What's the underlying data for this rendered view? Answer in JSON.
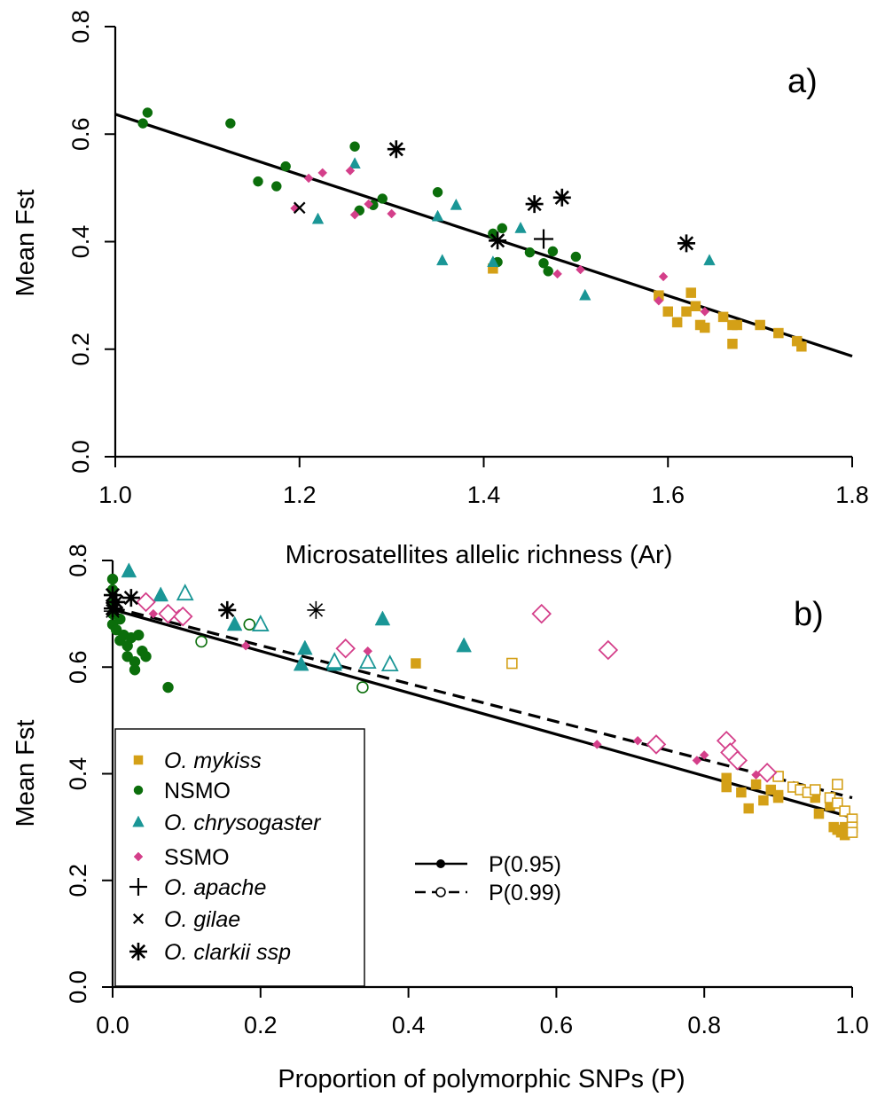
{
  "colors": {
    "mykiss": "#d4a017",
    "nsmo": "#0b6e0b",
    "chrysogaster": "#1a9696",
    "ssmo": "#d43f8a",
    "black": "#000000"
  },
  "chart_data": [
    {
      "type": "scatter",
      "panel_label": "a)",
      "xlabel": "Microsatellites allelic richness (Ar)",
      "ylabel": "Mean Fst",
      "xlim": [
        1.0,
        1.8
      ],
      "ylim": [
        0.0,
        0.8
      ],
      "xticks": [
        "1.0",
        "1.2",
        "1.4",
        "1.6",
        "1.8"
      ],
      "yticks": [
        "0.0",
        "0.2",
        "0.4",
        "0.6",
        "0.8"
      ],
      "grid": false,
      "regression_lines": [
        {
          "style": "solid",
          "x": [
            1.0,
            1.8
          ],
          "y": [
            0.637,
            0.187
          ]
        }
      ],
      "series": [
        {
          "group": "mykiss",
          "marker": "square",
          "points": [
            [
              1.41,
              0.35
            ],
            [
              1.59,
              0.3
            ],
            [
              1.6,
              0.27
            ],
            [
              1.61,
              0.25
            ],
            [
              1.62,
              0.27
            ],
            [
              1.63,
              0.28
            ],
            [
              1.625,
              0.305
            ],
            [
              1.635,
              0.245
            ],
            [
              1.64,
              0.24
            ],
            [
              1.66,
              0.26
            ],
            [
              1.67,
              0.245
            ],
            [
              1.675,
              0.245
            ],
            [
              1.67,
              0.21
            ],
            [
              1.7,
              0.245
            ],
            [
              1.72,
              0.23
            ],
            [
              1.74,
              0.215
            ],
            [
              1.745,
              0.205
            ]
          ]
        },
        {
          "group": "nsmo",
          "marker": "circle",
          "points": [
            [
              1.03,
              0.62
            ],
            [
              1.035,
              0.64
            ],
            [
              1.125,
              0.62
            ],
            [
              1.155,
              0.512
            ],
            [
              1.175,
              0.503
            ],
            [
              1.185,
              0.54
            ],
            [
              1.26,
              0.577
            ],
            [
              1.265,
              0.458
            ],
            [
              1.28,
              0.468
            ],
            [
              1.29,
              0.48
            ],
            [
              1.35,
              0.492
            ],
            [
              1.41,
              0.415
            ],
            [
              1.415,
              0.362
            ],
            [
              1.42,
              0.425
            ],
            [
              1.45,
              0.38
            ],
            [
              1.465,
              0.36
            ],
            [
              1.47,
              0.345
            ],
            [
              1.475,
              0.382
            ],
            [
              1.5,
              0.372
            ]
          ]
        },
        {
          "group": "chrysogaster",
          "marker": "triangle",
          "points": [
            [
              1.22,
              0.442
            ],
            [
              1.26,
              0.545
            ],
            [
              1.35,
              0.447
            ],
            [
              1.355,
              0.365
            ],
            [
              1.37,
              0.468
            ],
            [
              1.41,
              0.362
            ],
            [
              1.44,
              0.425
            ],
            [
              1.51,
              0.3
            ],
            [
              1.645,
              0.365
            ]
          ]
        },
        {
          "group": "ssmo",
          "marker": "diamond",
          "points": [
            [
              1.195,
              0.462
            ],
            [
              1.21,
              0.518
            ],
            [
              1.225,
              0.528
            ],
            [
              1.255,
              0.532
            ],
            [
              1.26,
              0.45
            ],
            [
              1.275,
              0.47
            ],
            [
              1.3,
              0.452
            ],
            [
              1.48,
              0.34
            ],
            [
              1.505,
              0.348
            ],
            [
              1.59,
              0.29
            ],
            [
              1.595,
              0.335
            ],
            [
              1.64,
              0.27
            ]
          ]
        },
        {
          "group": "apache",
          "marker": "plus",
          "points": [
            [
              1.465,
              0.405
            ]
          ]
        },
        {
          "group": "gilae",
          "marker": "cross",
          "points": [
            [
              1.2,
              0.463
            ]
          ]
        },
        {
          "group": "clarkii",
          "marker": "asterisk",
          "points": [
            [
              1.305,
              0.572
            ],
            [
              1.415,
              0.402
            ],
            [
              1.455,
              0.47
            ],
            [
              1.485,
              0.482
            ],
            [
              1.62,
              0.397
            ]
          ]
        }
      ]
    },
    {
      "type": "scatter",
      "panel_label": "b)",
      "xlabel": "Proportion of polymorphic SNPs (P)",
      "ylabel": "Mean Fst",
      "xlim": [
        0.0,
        1.0
      ],
      "ylim": [
        0.0,
        0.8
      ],
      "xticks": [
        "0.0",
        "0.2",
        "0.4",
        "0.6",
        "0.8",
        "1.0"
      ],
      "yticks": [
        "0.0",
        "0.2",
        "0.4",
        "0.6",
        "0.8"
      ],
      "grid": false,
      "legend": {
        "position": "bottom-left",
        "entries": [
          {
            "label": "O. mykiss",
            "group": "mykiss",
            "marker": "square",
            "italic": true
          },
          {
            "label": "NSMO",
            "group": "nsmo",
            "marker": "circle",
            "italic": false
          },
          {
            "label": "O. chrysogaster",
            "group": "chrysogaster",
            "marker": "triangle",
            "italic": true
          },
          {
            "label": "SSMO",
            "group": "ssmo",
            "marker": "diamond",
            "italic": false
          },
          {
            "label": "O. apache",
            "group": "apache",
            "marker": "plus",
            "italic": true
          },
          {
            "label": "O. gilae",
            "group": "gilae",
            "marker": "cross",
            "italic": true
          },
          {
            "label": "O. clarkii ssp",
            "group": "clarkii",
            "marker": "asterisk",
            "italic": true
          }
        ],
        "line_entries": [
          {
            "label": "P(0.95)",
            "style": "solid",
            "marker": "filled"
          },
          {
            "label": "P(0.99)",
            "style": "dashed",
            "marker": "open"
          }
        ]
      },
      "regression_lines": [
        {
          "name": "P(0.95)",
          "style": "solid",
          "x": [
            0.0,
            1.0
          ],
          "y": [
            0.708,
            0.318
          ]
        },
        {
          "name": "P(0.99)",
          "style": "dashed",
          "x": [
            0.0,
            1.0
          ],
          "y": [
            0.712,
            0.355
          ]
        }
      ],
      "series": [
        {
          "group": "mykiss",
          "marker": "square",
          "fill": "filled",
          "points": [
            [
              0.41,
              0.607
            ],
            [
              0.83,
              0.392
            ],
            [
              0.83,
              0.375
            ],
            [
              0.85,
              0.365
            ],
            [
              0.86,
              0.335
            ],
            [
              0.87,
              0.38
            ],
            [
              0.88,
              0.35
            ],
            [
              0.89,
              0.37
            ],
            [
              0.9,
              0.36
            ],
            [
              0.9,
              0.355
            ],
            [
              0.95,
              0.355
            ],
            [
              0.955,
              0.325
            ],
            [
              0.97,
              0.34
            ],
            [
              0.975,
              0.3
            ],
            [
              0.98,
              0.295
            ],
            [
              0.985,
              0.29
            ],
            [
              0.99,
              0.3
            ],
            [
              0.99,
              0.285
            ],
            [
              0.995,
              0.29
            ]
          ]
        },
        {
          "group": "mykiss",
          "marker": "square",
          "fill": "open",
          "points": [
            [
              0.54,
              0.607
            ],
            [
              0.9,
              0.395
            ],
            [
              0.92,
              0.375
            ],
            [
              0.93,
              0.37
            ],
            [
              0.94,
              0.365
            ],
            [
              0.95,
              0.37
            ],
            [
              0.97,
              0.355
            ],
            [
              0.98,
              0.38
            ],
            [
              0.98,
              0.345
            ],
            [
              0.99,
              0.33
            ],
            [
              1.0,
              0.315
            ],
            [
              1.0,
              0.3
            ],
            [
              1.0,
              0.29
            ]
          ]
        },
        {
          "group": "nsmo",
          "marker": "circle",
          "fill": "filled",
          "points": [
            [
              0.0,
              0.765
            ],
            [
              0.0,
              0.745
            ],
            [
              0.0,
              0.72
            ],
            [
              0.0,
              0.7
            ],
            [
              0.0,
              0.68
            ],
            [
              0.005,
              0.67
            ],
            [
              0.01,
              0.69
            ],
            [
              0.01,
              0.65
            ],
            [
              0.015,
              0.66
            ],
            [
              0.02,
              0.64
            ],
            [
              0.02,
              0.62
            ],
            [
              0.025,
              0.655
            ],
            [
              0.03,
              0.61
            ],
            [
              0.03,
              0.595
            ],
            [
              0.035,
              0.66
            ],
            [
              0.04,
              0.63
            ],
            [
              0.045,
              0.62
            ],
            [
              0.075,
              0.562
            ]
          ]
        },
        {
          "group": "nsmo",
          "marker": "circle",
          "fill": "open",
          "points": [
            [
              0.12,
              0.648
            ],
            [
              0.185,
              0.68
            ],
            [
              0.338,
              0.562
            ]
          ]
        },
        {
          "group": "chrysogaster",
          "marker": "triangle",
          "fill": "filled",
          "points": [
            [
              0.022,
              0.78
            ],
            [
              0.065,
              0.735
            ],
            [
              0.165,
              0.68
            ],
            [
              0.255,
              0.605
            ],
            [
              0.26,
              0.635
            ],
            [
              0.3,
              0.605
            ],
            [
              0.365,
              0.69
            ],
            [
              0.475,
              0.64
            ]
          ]
        },
        {
          "group": "chrysogaster",
          "marker": "triangle",
          "fill": "open",
          "points": [
            [
              0.098,
              0.738
            ],
            [
              0.2,
              0.68
            ],
            [
              0.3,
              0.61
            ],
            [
              0.345,
              0.61
            ],
            [
              0.375,
              0.605
            ]
          ]
        },
        {
          "group": "ssmo",
          "marker": "diamond",
          "fill": "filled",
          "points": [
            [
              0.045,
              0.72
            ],
            [
              0.055,
              0.7
            ],
            [
              0.075,
              0.695
            ],
            [
              0.09,
              0.7
            ],
            [
              0.18,
              0.64
            ],
            [
              0.345,
              0.63
            ],
            [
              0.655,
              0.455
            ],
            [
              0.71,
              0.462
            ],
            [
              0.79,
              0.425
            ],
            [
              0.8,
              0.435
            ],
            [
              0.845,
              0.43
            ],
            [
              0.87,
              0.398
            ]
          ]
        },
        {
          "group": "ssmo",
          "marker": "diamond",
          "fill": "open",
          "points": [
            [
              0.045,
              0.722
            ],
            [
              0.075,
              0.7
            ],
            [
              0.095,
              0.695
            ],
            [
              0.315,
              0.635
            ],
            [
              0.58,
              0.7
            ],
            [
              0.67,
              0.632
            ],
            [
              0.735,
              0.455
            ],
            [
              0.83,
              0.462
            ],
            [
              0.835,
              0.44
            ],
            [
              0.845,
              0.425
            ],
            [
              0.885,
              0.402
            ]
          ]
        },
        {
          "group": "clarkii",
          "marker": "asterisk",
          "fill": "filled",
          "points": [
            [
              0.0,
              0.735
            ],
            [
              0.0,
              0.71
            ],
            [
              0.005,
              0.722
            ],
            [
              0.025,
              0.73
            ],
            [
              0.155,
              0.707
            ]
          ]
        },
        {
          "group": "clarkii",
          "marker": "asterisk",
          "fill": "open",
          "points": [
            [
              0.0,
              0.705
            ],
            [
              0.275,
              0.707
            ]
          ]
        }
      ]
    }
  ]
}
